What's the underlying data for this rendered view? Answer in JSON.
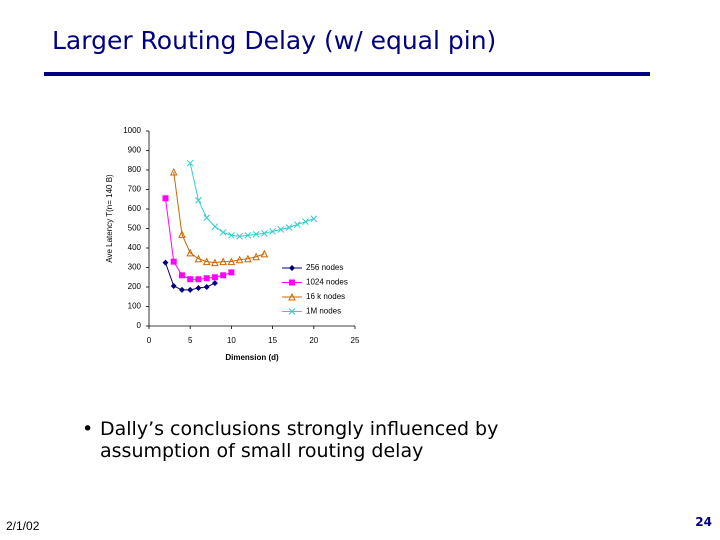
{
  "title": "Larger Routing Delay (w/ equal pin)",
  "bullet": [
    "Dally’s conclusions strongly influenced by",
    "assumption of small routing delay"
  ],
  "footer": {
    "date": "2/1/02",
    "page": "24"
  },
  "chart_data": {
    "type": "line",
    "x_label": "Dimension (d)",
    "y_label": "Ave Latency T(n= 140 B)",
    "xlim": [
      0,
      25
    ],
    "xticks": [
      0,
      5,
      10,
      15,
      20,
      25
    ],
    "ylim": [
      0,
      1000
    ],
    "yticks": [
      0,
      100,
      200,
      300,
      400,
      500,
      600,
      700,
      800,
      900,
      1000
    ],
    "legend": "lower-right",
    "series": [
      {
        "name": "256 nodes",
        "color": "#000080",
        "marker": "diamond",
        "x": [
          2,
          3,
          4,
          5,
          6,
          7,
          8
        ],
        "values": [
          325,
          205,
          185,
          185,
          195,
          200,
          220
        ]
      },
      {
        "name": "1024 nodes",
        "color": "#ff00ff",
        "marker": "square",
        "x": [
          2,
          3,
          4,
          5,
          6,
          7,
          8,
          9,
          10
        ],
        "values": [
          655,
          330,
          260,
          240,
          240,
          245,
          250,
          260,
          275
        ]
      },
      {
        "name": "16 k nodes",
        "color": "#cc6600",
        "marker": "triangle",
        "x": [
          3,
          4,
          5,
          6,
          7,
          8,
          9,
          10,
          11,
          12,
          13,
          14
        ],
        "values": [
          790,
          470,
          375,
          345,
          330,
          325,
          330,
          330,
          340,
          345,
          355,
          370
        ]
      },
      {
        "name": "1M nodes",
        "color": "#33cccc",
        "marker": "cross",
        "x": [
          5,
          6,
          7,
          8,
          9,
          10,
          11,
          12,
          13,
          14,
          15,
          16,
          17,
          18,
          19,
          20
        ],
        "values": [
          835,
          645,
          555,
          510,
          480,
          465,
          460,
          465,
          470,
          475,
          485,
          495,
          505,
          520,
          535,
          550
        ]
      }
    ]
  }
}
